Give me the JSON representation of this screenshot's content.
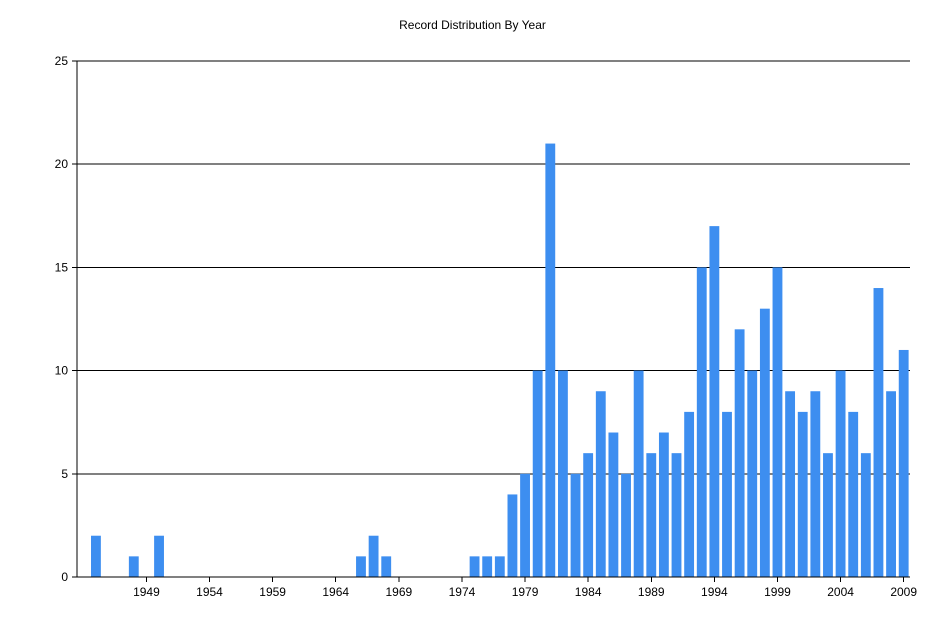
{
  "chart_data": {
    "type": "bar",
    "title": "Record Distribution By Year",
    "xlabel": "",
    "ylabel": "",
    "ylim": [
      0,
      25
    ],
    "yticks": [
      0,
      5,
      10,
      15,
      20,
      25
    ],
    "xlim": [
      1944,
      2010
    ],
    "xtick_labels": [
      1949,
      1954,
      1959,
      1964,
      1969,
      1974,
      1979,
      1984,
      1989,
      1994,
      1999,
      2004,
      2009
    ],
    "grid": "horizontal",
    "legend": "none",
    "color": "#3d8ef0",
    "x": [
      1945,
      1948,
      1950,
      1966,
      1967,
      1968,
      1975,
      1976,
      1977,
      1978,
      1979,
      1980,
      1981,
      1982,
      1983,
      1984,
      1985,
      1986,
      1987,
      1988,
      1989,
      1990,
      1991,
      1992,
      1993,
      1994,
      1995,
      1996,
      1997,
      1998,
      1999,
      2000,
      2001,
      2002,
      2003,
      2004,
      2005,
      2006,
      2007,
      2008,
      2009
    ],
    "values": [
      2,
      1,
      2,
      1,
      2,
      1,
      1,
      1,
      1,
      4,
      5,
      10,
      21,
      10,
      5,
      6,
      9,
      7,
      5,
      10,
      6,
      7,
      6,
      8,
      15,
      17,
      8,
      12,
      10,
      13,
      15,
      9,
      8,
      9,
      6,
      10,
      8,
      6,
      14,
      9,
      11
    ]
  }
}
